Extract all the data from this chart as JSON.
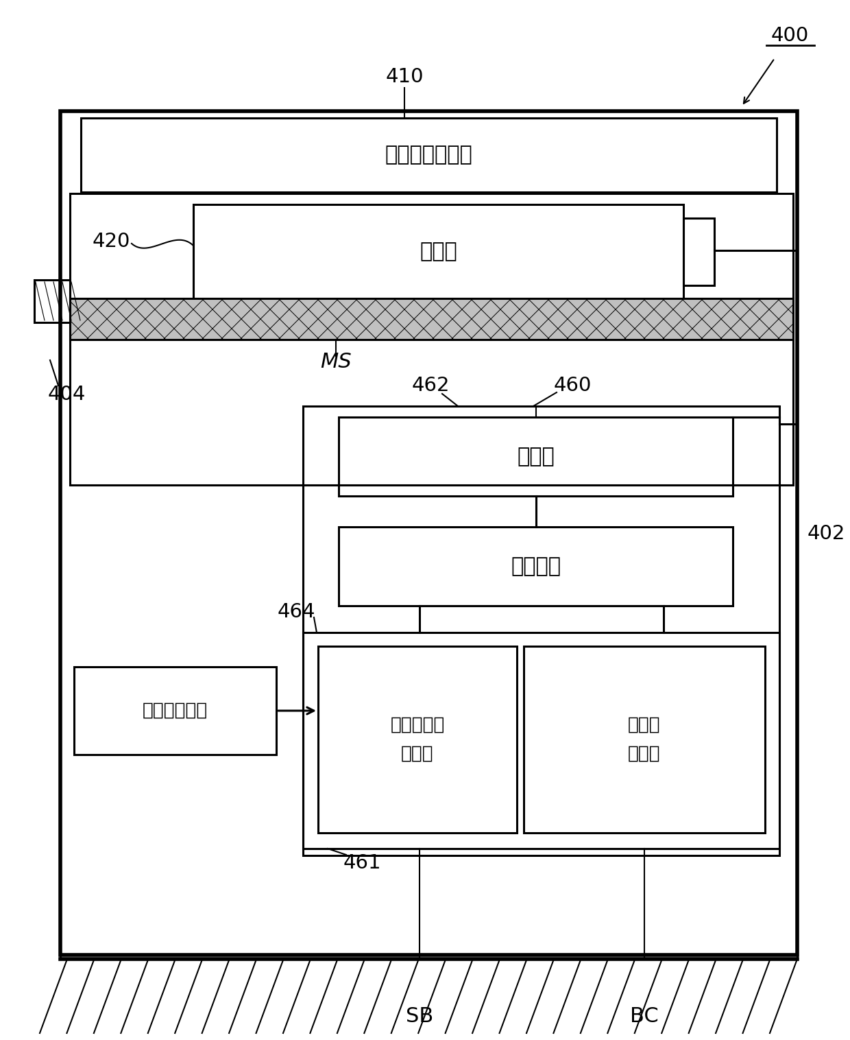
{
  "bg_color": "#ffffff",
  "line_color": "#000000",
  "label_400": "400",
  "label_402": "402",
  "label_404": "404",
  "label_410": "410",
  "label_420": "420",
  "label_460": "460",
  "label_461": "461",
  "label_462": "462",
  "label_464": "464",
  "label_MS": "MS",
  "label_SB": "SB",
  "label_BC": "BC",
  "text_solar_panel": "太阳能电池面板",
  "text_battery_box": "电池筱",
  "text_inverter": "逆变器",
  "text_switch_circuit": "开关电路",
  "text_scooter_power": "小型摩托车\n用电源",
  "text_battery_charger": "电池包\n充电器",
  "text_bike_socket": "到自行车插座",
  "figw": 12.4,
  "figh": 15.16,
  "dpi": 100
}
